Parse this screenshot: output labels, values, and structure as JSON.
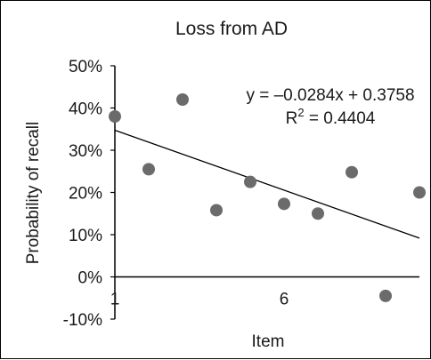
{
  "chart_data": {
    "type": "scatter",
    "title": "Loss from AD",
    "xlabel": "Item",
    "ylabel": "Probability of recall",
    "xlim": [
      1,
      10
    ],
    "ylim": [
      -0.1,
      0.5
    ],
    "x_ticks": [
      {
        "value": 1,
        "label": "1"
      },
      {
        "value": 6,
        "label": "6"
      }
    ],
    "y_ticks": [
      {
        "value": 0.5,
        "label": "50%"
      },
      {
        "value": 0.4,
        "label": "40%"
      },
      {
        "value": 0.3,
        "label": "30%"
      },
      {
        "value": 0.2,
        "label": "20%"
      },
      {
        "value": 0.1,
        "label": "10%"
      },
      {
        "value": 0.0,
        "label": "0%"
      },
      {
        "value": -0.1,
        "label": "-10%"
      }
    ],
    "grid": false,
    "series": [
      {
        "points": [
          {
            "x": 1,
            "y": 0.38
          },
          {
            "x": 2,
            "y": 0.255
          },
          {
            "x": 3,
            "y": 0.42
          },
          {
            "x": 4,
            "y": 0.158
          },
          {
            "x": 5,
            "y": 0.225
          },
          {
            "x": 6,
            "y": 0.173
          },
          {
            "x": 7,
            "y": 0.15
          },
          {
            "x": 8,
            "y": 0.248
          },
          {
            "x": 9,
            "y": -0.045
          },
          {
            "x": 10,
            "y": 0.2
          }
        ]
      }
    ],
    "trendline": {
      "slope": -0.0284,
      "intercept": 0.3758,
      "equation_label": "y = –0.0284x + 0.3758",
      "r2_prefix": "R",
      "r2_exp": "2",
      "r2_suffix": " = 0.4404"
    }
  },
  "colors": {
    "point": "#6b6b6b",
    "axis": "#000000",
    "trendline": "#000000",
    "text": "#1a1a1a"
  }
}
